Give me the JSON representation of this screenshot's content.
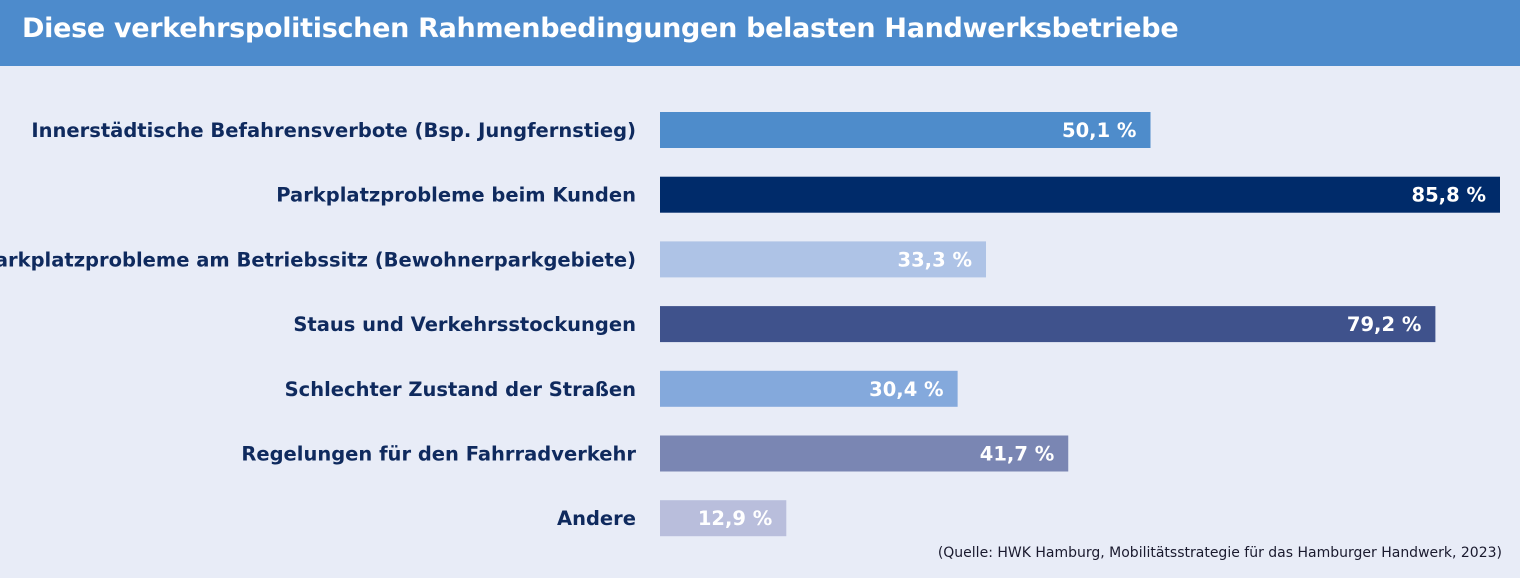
{
  "chart_data": {
    "type": "bar",
    "orientation": "horizontal",
    "title": "Diese verkehrspolitischen Rahmenbedingungen belasten Handwerksbetriebe",
    "categories": [
      "Innerstädtische Befahrensverbote (Bsp. Jungfernstieg)",
      "Parkplatzprobleme beim Kunden",
      "Parkplatzprobleme am Betriebssitz (Bewohnerparkgebiete)",
      "Staus und Verkehrsstockungen",
      "Schlechter Zustand der Straßen",
      "Regelungen für den Fahrradverkehr",
      "Andere"
    ],
    "values": [
      50.1,
      85.8,
      33.3,
      79.2,
      30.4,
      41.7,
      12.9
    ],
    "value_labels": [
      "50,1 %",
      "85,8 %",
      "33,3 %",
      "79,2 %",
      "30,4 %",
      "41,7 %",
      "12,9 %"
    ],
    "colors": [
      "#4e8ccb",
      "#002b6a",
      "#aec3e6",
      "#3f528c",
      "#84a9dc",
      "#7a86b3",
      "#b9bedc"
    ],
    "unit": "%",
    "xlim": [
      0,
      85.8
    ],
    "xlabel": "",
    "ylabel": "",
    "source": "(Quelle: HWK Hamburg, Mobilitätsstrategie für das Hamburger Handwerk, 2023)"
  }
}
